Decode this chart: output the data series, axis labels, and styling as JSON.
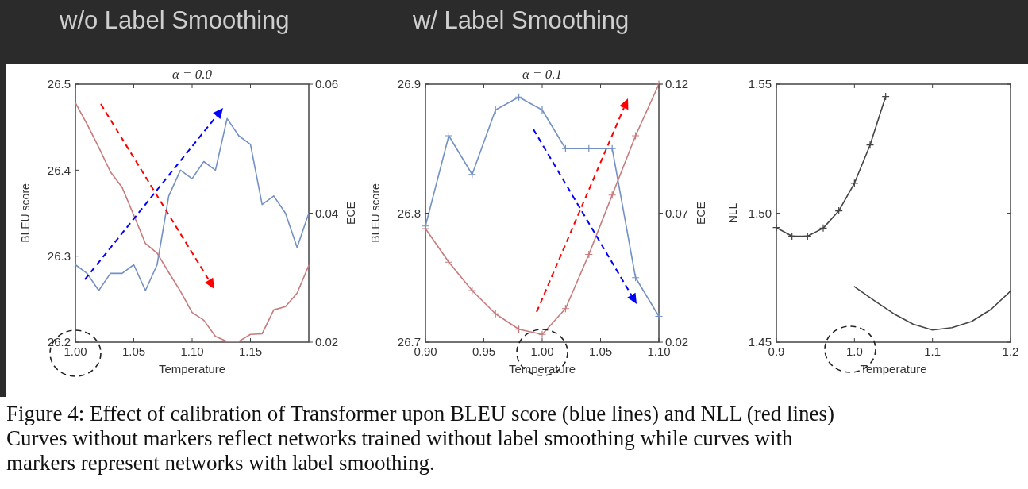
{
  "chart_data": [
    {
      "type": "line",
      "title": "α = 0.0",
      "xlabel": "Temperature",
      "ylabel": "BLEU score",
      "y2label": "ECE",
      "annotations": [
        "w/o Label Smoothing",
        "Figure 4: Effect of calibration of Transformer upon BLEU score (blue lines) and NLL (red lines) Curves without markers reflect networks trained without label smoothing while curves with markers represent networks with label smoothing."
      ],
      "x": [
        1.0,
        1.01,
        1.02,
        1.03,
        1.04,
        1.05,
        1.06,
        1.07,
        1.08,
        1.09,
        1.1,
        1.11,
        1.12,
        1.13,
        1.14,
        1.15,
        1.16,
        1.17,
        1.18,
        1.19,
        1.2
      ],
      "series": [
        {
          "color": "#7391c4",
          "values": [
            26.29,
            26.28,
            26.26,
            26.28,
            26.28,
            26.29,
            26.26,
            26.29,
            26.37,
            26.4,
            26.39,
            26.41,
            26.4,
            26.46,
            26.44,
            26.43,
            26.36,
            26.37,
            26.35,
            26.31,
            26.35
          ]
        },
        {
          "color": "#c87a7a",
          "axis": "y2",
          "values": [
            0.0571,
            0.0538,
            0.0502,
            0.0464,
            0.044,
            0.0397,
            0.0353,
            0.0338,
            0.0308,
            0.0279,
            0.0246,
            0.0234,
            0.0209,
            0.0201,
            0.0201,
            0.0212,
            0.0213,
            0.025,
            0.0255,
            0.0276,
            0.0319
          ]
        }
      ],
      "xlim": [
        1.0,
        1.2
      ],
      "xticks": [
        {
          "value": 1,
          "label": "1.00"
        },
        1.05,
        {
          "value": 1.1,
          "label": "1.10"
        },
        1.15
      ],
      "ylim": [
        26.2,
        26.5
      ],
      "yticks": [
        26.2,
        26.3,
        26.4,
        26.5
      ],
      "y2lim": [
        0.02,
        0.06
      ],
      "y2ticks": [
        0.02,
        0.04,
        0.06
      ]
    },
    {
      "type": "line",
      "title": "α = 0.1",
      "xlabel": "Temperature",
      "ylabel": "BLEU score",
      "y2label": "ECE",
      "marker": "cross",
      "annotations": [
        "w/ Label Smoothing"
      ],
      "x": [
        0.9,
        0.92,
        0.94,
        0.96,
        0.98,
        1.0,
        1.02,
        1.04,
        1.06,
        1.08,
        1.1
      ],
      "series": [
        {
          "color": "#7391c4",
          "values": [
            26.79,
            26.86,
            26.83,
            26.88,
            26.89,
            26.88,
            26.85,
            26.85,
            26.85,
            26.75,
            26.72
          ]
        },
        {
          "color": "#c87a7a",
          "axis": "y2",
          "values": [
            0.064,
            0.051,
            0.04,
            0.031,
            0.025,
            0.023,
            0.033,
            0.054,
            0.077,
            0.1,
            0.12
          ]
        }
      ],
      "xlim": [
        0.9,
        1.1
      ],
      "xticks": [
        {
          "value": 0.9,
          "label": "0.90"
        },
        0.95,
        {
          "value": 1,
          "label": "1.00"
        },
        1.05,
        {
          "value": 1.1,
          "label": "1.10"
        }
      ],
      "ylim": [
        26.7,
        26.9
      ],
      "yticks": [
        26.7,
        26.8,
        26.9
      ],
      "y2lim": [
        0.02,
        0.12
      ],
      "y2ticks": [
        0.02,
        0.07,
        0.12
      ]
    },
    {
      "type": "line",
      "xlabel": "Temperature",
      "ylabel": "NLL",
      "series": [
        {
          "color": "#444444",
          "marker": "cross",
          "x": [
            0.9,
            0.92,
            0.94,
            0.96,
            0.98,
            1.0,
            1.02,
            1.04
          ],
          "values": [
            1.4944,
            1.4911,
            1.4911,
            1.4942,
            1.5009,
            1.5116,
            1.5264,
            1.5452
          ]
        },
        {
          "color": "#444444",
          "x": [
            1.0,
            1.025,
            1.05,
            1.075,
            1.1,
            1.125,
            1.15,
            1.175,
            1.2
          ],
          "values": [
            1.4715,
            1.4662,
            1.4611,
            1.457,
            1.4547,
            1.4556,
            1.458,
            1.4627,
            1.4698
          ]
        }
      ],
      "xlim": [
        0.9,
        1.2
      ],
      "xticks": [
        0.9,
        {
          "value": 1,
          "label": "1.0"
        },
        1.1,
        {
          "value": 1.2,
          "label": "1.2"
        }
      ],
      "ylim": [
        1.45,
        1.55
      ],
      "yticks": [
        1.45,
        {
          "value": 1.5,
          "label": "1.50"
        },
        1.55
      ]
    }
  ]
}
